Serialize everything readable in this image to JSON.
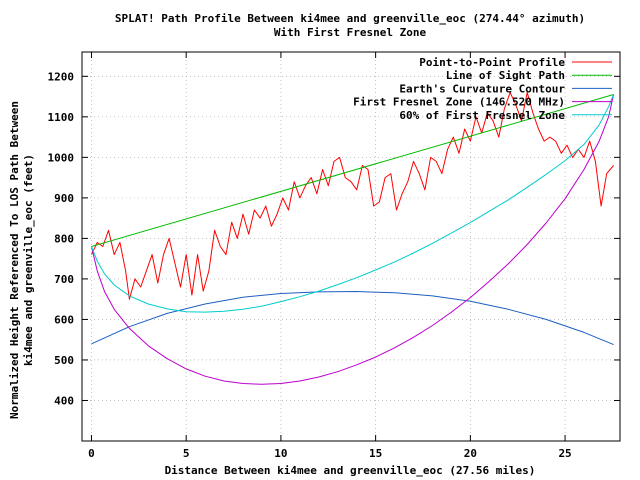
{
  "chart_data": {
    "type": "line",
    "title": "SPLAT! Path Profile Between ki4mee and greenville_eoc (274.44° azimuth)",
    "subtitle": "With First Fresnel Zone",
    "xlabel": "Distance Between ki4mee and greenville_eoc (27.56 miles)",
    "ylabel_line1": "Normalized Height Referenced To LOS Path Between",
    "ylabel_line2": "ki4mee and greenville_eoc (feet)",
    "xlim": [
      -0.5,
      27.9
    ],
    "ylim": [
      300,
      1260
    ],
    "xticks": [
      0,
      5,
      10,
      15,
      20,
      25
    ],
    "yticks": [
      400,
      500,
      600,
      700,
      800,
      900,
      1000,
      1100,
      1200
    ],
    "grid": true,
    "legend_position": "top-right",
    "series": [
      {
        "name": "Point-to-Point Profile",
        "color": "#ff0000",
        "x": [
          0,
          0.3,
          0.6,
          0.9,
          1.2,
          1.5,
          1.8,
          2.0,
          2.3,
          2.6,
          2.9,
          3.2,
          3.5,
          3.8,
          4.1,
          4.4,
          4.7,
          5.0,
          5.3,
          5.6,
          5.9,
          6.2,
          6.5,
          6.8,
          7.1,
          7.4,
          7.7,
          8.0,
          8.3,
          8.6,
          8.9,
          9.2,
          9.5,
          9.8,
          10.1,
          10.4,
          10.7,
          11.0,
          11.3,
          11.6,
          11.9,
          12.2,
          12.5,
          12.8,
          13.1,
          13.4,
          13.7,
          14.0,
          14.3,
          14.6,
          14.9,
          15.2,
          15.5,
          15.8,
          16.1,
          16.4,
          16.7,
          17.0,
          17.3,
          17.6,
          17.9,
          18.2,
          18.5,
          18.8,
          19.1,
          19.4,
          19.7,
          20.0,
          20.3,
          20.6,
          20.9,
          21.2,
          21.5,
          21.8,
          22.1,
          22.4,
          22.7,
          23.0,
          23.3,
          23.6,
          23.9,
          24.2,
          24.5,
          24.8,
          25.1,
          25.4,
          25.7,
          26.0,
          26.3,
          26.6,
          26.9,
          27.2,
          27.56
        ],
        "y": [
          760,
          790,
          780,
          820,
          760,
          790,
          720,
          650,
          700,
          680,
          720,
          760,
          690,
          760,
          800,
          740,
          680,
          760,
          660,
          760,
          670,
          720,
          820,
          780,
          760,
          840,
          800,
          860,
          810,
          870,
          850,
          880,
          830,
          860,
          900,
          870,
          940,
          900,
          930,
          950,
          910,
          970,
          930,
          990,
          1000,
          950,
          940,
          920,
          980,
          970,
          880,
          890,
          950,
          960,
          870,
          910,
          940,
          990,
          960,
          920,
          1000,
          990,
          960,
          1020,
          1050,
          1010,
          1070,
          1040,
          1100,
          1060,
          1110,
          1090,
          1050,
          1120,
          1160,
          1130,
          1090,
          1160,
          1110,
          1070,
          1040,
          1050,
          1040,
          1010,
          1030,
          1000,
          1020,
          1000,
          1040,
          990,
          880,
          960,
          980
        ]
      },
      {
        "name": "Line of Sight Path",
        "color": "#00bb00",
        "x": [
          0,
          27.56
        ],
        "y": [
          780,
          1155
        ]
      },
      {
        "name": "Earth's Curvature Contour",
        "color": "#1f5fbf",
        "x": [
          0,
          2,
          4,
          6,
          8,
          10,
          12,
          14,
          14.5,
          16,
          18,
          20,
          22,
          24,
          26,
          27.56
        ],
        "y": [
          540,
          582,
          615,
          638,
          655,
          664,
          668,
          669,
          668,
          666,
          658,
          645,
          625,
          600,
          568,
          538
        ]
      },
      {
        "name": "First Fresnel Zone (146.520 MHz)",
        "color": "#bb00cc",
        "x": [
          0,
          0.3,
          0.7,
          1.2,
          2,
          3,
          4,
          5,
          6,
          7,
          8,
          9,
          10,
          11,
          12,
          13,
          14,
          15,
          16,
          17,
          18,
          19,
          20,
          21,
          22,
          23,
          24,
          25,
          26,
          26.8,
          27.3,
          27.56
        ],
        "y": [
          780,
          720,
          668,
          625,
          578,
          535,
          503,
          478,
          460,
          448,
          442,
          440,
          442,
          448,
          458,
          471,
          488,
          507,
          530,
          556,
          585,
          618,
          654,
          694,
          737,
          785,
          838,
          898,
          970,
          1040,
          1100,
          1155
        ]
      },
      {
        "name": "60% of First Fresnel Zone",
        "color": "#00cccc",
        "x": [
          0,
          0.3,
          0.7,
          1.2,
          2,
          3,
          4,
          5,
          6,
          7,
          8,
          9,
          10,
          11,
          12,
          13,
          14,
          15,
          16,
          17,
          18,
          19,
          20,
          21,
          22,
          23,
          24,
          25,
          26,
          26.8,
          27.3,
          27.56
        ],
        "y": [
          780,
          744,
          712,
          685,
          658,
          638,
          626,
          619,
          618,
          620,
          625,
          633,
          644,
          656,
          670,
          686,
          703,
          722,
          742,
          764,
          788,
          813,
          839,
          867,
          895,
          926,
          958,
          992,
          1032,
          1080,
          1125,
          1155
        ]
      }
    ]
  }
}
